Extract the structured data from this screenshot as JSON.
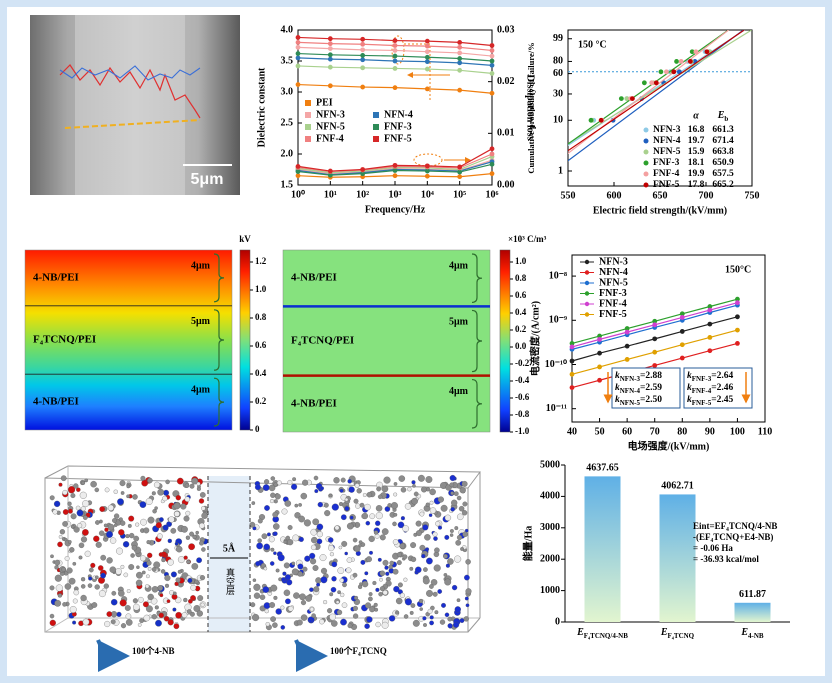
{
  "chart_data": [
    {
      "type": "line",
      "xscale": "log",
      "yscale": "linear",
      "x": [
        1,
        10,
        100,
        1000,
        10000,
        100000,
        1000000
      ],
      "xlim": [
        1,
        1000000
      ],
      "xticks": [
        {
          "value": 1,
          "label": "10⁰"
        },
        {
          "value": 10,
          "label": "10¹"
        },
        {
          "value": 100,
          "label": "10²"
        },
        {
          "value": 1000,
          "label": "10³"
        },
        {
          "value": 10000,
          "label": "10⁴"
        },
        {
          "value": 100000,
          "label": "10⁵"
        },
        {
          "value": 1000000,
          "label": "10⁶"
        }
      ],
      "ylim": [
        1.5,
        4
      ],
      "yticks": [
        1.5,
        {
          "value": 2,
          "label": "2.0"
        },
        2.5,
        {
          "value": 3,
          "label": "3.0"
        },
        3.5,
        {
          "value": 4,
          "label": "4.0"
        }
      ],
      "y2lim": [
        0,
        0.03
      ],
      "y2ticks": [
        {
          "value": 0,
          "label": "0.00"
        },
        0.01,
        0.02,
        0.03
      ],
      "xlabel": "Frequency/Hz",
      "ylabel": "Dielectric constant",
      "y2label": "Dissipation loss",
      "series": [
        {
          "name": "PEI",
          "color": "#f07f10",
          "values": [
            3.12,
            3.1,
            3.08,
            3.07,
            3.05,
            3.03,
            2.98
          ],
          "y2_values": [
            0.0018,
            0.0015,
            0.0016,
            0.0018,
            0.0017,
            0.0016,
            0.0022
          ]
        },
        {
          "name": "NFN-3",
          "color": "#f4a6a6",
          "values": [
            3.72,
            3.7,
            3.68,
            3.67,
            3.65,
            3.63,
            3.58
          ],
          "y2_values": [
            0.003,
            0.0022,
            0.0025,
            0.0032,
            0.003,
            0.0028,
            0.0048
          ]
        },
        {
          "name": "NFN-4",
          "color": "#2e75b6",
          "values": [
            3.55,
            3.53,
            3.52,
            3.5,
            3.49,
            3.47,
            3.43
          ],
          "y2_values": [
            0.0028,
            0.002,
            0.0024,
            0.003,
            0.0029,
            0.0027,
            0.0045
          ]
        },
        {
          "name": "NFN-5",
          "color": "#a9d18e",
          "values": [
            3.42,
            3.4,
            3.39,
            3.38,
            3.37,
            3.35,
            3.3
          ],
          "y2_values": [
            0.0032,
            0.0024,
            0.0027,
            0.0034,
            0.0033,
            0.003,
            0.0055
          ]
        },
        {
          "name": "FNF-3",
          "color": "#2e8b57",
          "values": [
            3.62,
            3.6,
            3.59,
            3.58,
            3.56,
            3.54,
            3.5
          ],
          "y2_values": [
            0.0026,
            0.0019,
            0.0022,
            0.0028,
            0.0027,
            0.0025,
            0.004
          ]
        },
        {
          "name": "FNF-4",
          "color": "#f08080",
          "values": [
            3.8,
            3.78,
            3.77,
            3.75,
            3.74,
            3.72,
            3.67
          ],
          "y2_values": [
            0.0034,
            0.0026,
            0.0029,
            0.0036,
            0.0035,
            0.0033,
            0.006
          ]
        },
        {
          "name": "FNF-5",
          "color": "#d62728",
          "values": [
            3.88,
            3.86,
            3.85,
            3.83,
            3.82,
            3.8,
            3.75
          ],
          "y2_values": [
            0.0036,
            0.0027,
            0.003,
            0.0038,
            0.0037,
            0.0035,
            0.007
          ]
        }
      ]
    },
    {
      "type": "scatter",
      "xscale": "linear",
      "yscale": "weibull",
      "lines": false,
      "note": "150 °C",
      "xlim": [
        550,
        750
      ],
      "xticks": [
        550,
        600,
        650,
        700,
        750
      ],
      "ylim": [
        0.5,
        99.9
      ],
      "yticks": [
        1,
        10,
        30,
        60,
        80,
        99
      ],
      "reference_line": 63.2,
      "xlabel": "Electric field strength/(kV/mm)",
      "ylabel": "Cumulative probability of failure/%",
      "table_headers": [
        "α",
        "Eb"
      ],
      "series": [
        {
          "name": "NFN-3",
          "color": "#8ecae6",
          "alpha": 16.8,
          "Eb": 661.3,
          "x": [
            578,
            614,
            641,
            661,
            680,
            699
          ],
          "values": [
            10,
            25,
            45,
            63,
            80,
            92
          ]
        },
        {
          "name": "NFN-4",
          "color": "#1f5fbf",
          "alpha": 19.7,
          "Eb": 671.4,
          "x": [
            599,
            630,
            654,
            671,
            688,
            704
          ],
          "values": [
            10,
            25,
            45,
            63,
            80,
            92
          ]
        },
        {
          "name": "NFN-5",
          "color": "#a9d18e",
          "alpha": 15.9,
          "Eb": 663.8,
          "x": [
            576,
            614,
            643,
            663,
            684,
            704
          ],
          "values": [
            10,
            25,
            45,
            63,
            80,
            92
          ]
        },
        {
          "name": "FNF-3",
          "color": "#2ca02c",
          "alpha": 18.1,
          "Eb": 650.9,
          "x": [
            575,
            608,
            633,
            651,
            668,
            685
          ],
          "values": [
            10,
            25,
            45,
            63,
            80,
            92
          ]
        },
        {
          "name": "FNF-4",
          "color": "#f4a0a0",
          "alpha": 19.9,
          "Eb": 657.5,
          "x": [
            587,
            618,
            641,
            657,
            673,
            689
          ],
          "values": [
            10,
            25,
            45,
            63,
            80,
            92
          ]
        },
        {
          "name": "FNF-5",
          "color": "#c00000",
          "alpha": 17.8,
          "Eb": 665.2,
          "x": [
            586,
            620,
            646,
            665,
            683,
            701
          ],
          "values": [
            10,
            25,
            45,
            63,
            80,
            92
          ]
        }
      ]
    },
    {
      "type": "line",
      "xscale": "linear",
      "yscale": "log",
      "note": "150°C",
      "x": [
        40,
        50,
        60,
        70,
        80,
        90,
        100
      ],
      "xlim": [
        40,
        110
      ],
      "xticks": [
        40,
        50,
        60,
        70,
        80,
        90,
        100,
        110
      ],
      "ylim": [
        5e-12,
        3e-08
      ],
      "yticks": [
        {
          "value": 1e-11,
          "label": "10⁻¹¹"
        },
        {
          "value": 1e-10,
          "label": "10⁻¹⁰"
        },
        {
          "value": 1e-09,
          "label": "10⁻⁹"
        },
        {
          "value": 1e-08,
          "label": "10⁻⁸"
        }
      ],
      "xlabel": "电场强度/(kV/mm)",
      "ylabel": "电流密度/(A/cm²)",
      "k_groups": [
        [
          "kNFN-3=2.88",
          "kNFN-4=2.59",
          "kNFN-5=2.50"
        ],
        [
          "kFNF-3=2.64",
          "kFNF-4=2.46",
          "kFNF-5=2.45"
        ]
      ],
      "series": [
        {
          "name": "NFN-3",
          "color": "#222222",
          "values": [
            1.2e-10,
            1.8e-10,
            2.6e-10,
            3.8e-10,
            5.6e-10,
            8.2e-10,
            1.2e-09
          ]
        },
        {
          "name": "NFN-4",
          "color": "#e02020",
          "values": [
            3e-11,
            4.4e-11,
            6.5e-11,
            9.5e-11,
            1.4e-10,
            2.05e-10,
            3e-10
          ]
        },
        {
          "name": "NFN-5",
          "color": "#1f6fd0",
          "values": [
            2.2e-10,
            3.2e-10,
            4.7e-10,
            6.9e-10,
            1e-09,
            1.5e-09,
            2.2e-09
          ]
        },
        {
          "name": "FNF-3",
          "color": "#2ca02c",
          "values": [
            3e-10,
            4.4e-10,
            6.5e-10,
            9.5e-10,
            1.4e-09,
            2.05e-09,
            3e-09
          ]
        },
        {
          "name": "FNF-4",
          "color": "#d040d0",
          "values": [
            2.5e-10,
            3.7e-10,
            5.4e-10,
            7.9e-10,
            1.16e-09,
            1.7e-09,
            2.5e-09
          ]
        },
        {
          "name": "FNF-5",
          "color": "#e0a000",
          "values": [
            6e-11,
            8.8e-11,
            1.3e-10,
            1.9e-10,
            2.8e-10,
            4.1e-10,
            6e-10
          ]
        }
      ]
    },
    {
      "type": "bar",
      "yscale": "linear",
      "categories": [
        "EF₄TCNQ/4-NB",
        "EF₄TCNQ",
        "E4-NB"
      ],
      "values": [
        4637.65,
        4062.71,
        611.87
      ],
      "gradient": [
        "#5fb0e6",
        "#e2f5cf"
      ],
      "ylim": [
        0,
        5000
      ],
      "yticks": [
        0,
        1000,
        2000,
        3000,
        4000,
        5000
      ],
      "ylabel": "能量/Ha",
      "annotation": [
        "Eint=EF₄TCNQ/4-NB",
        "-(EF₄TCNQ+E4-NB)",
        "= -0.06 Ha",
        "= -36.93 kcal/mol"
      ]
    }
  ],
  "sem_image": {
    "scale_bar": "5μm"
  },
  "field_maps": [
    {
      "unit": "kV",
      "colorbar_ticks": [
        "1.2",
        "1.0",
        "0.8",
        "0.6",
        "0.4",
        "0.2",
        "0"
      ],
      "layers": [
        {
          "name": "4-NB/PEI",
          "thickness": "4μm"
        },
        {
          "name": "F₄TCNQ/PEI",
          "thickness": "5μm"
        },
        {
          "name": "4-NB/PEI",
          "thickness": "4μm"
        }
      ]
    },
    {
      "unit": "×10³ C/m³",
      "colorbar_ticks": [
        "1.0",
        "0.8",
        "0.6",
        "0.4",
        "0.2",
        "0.0",
        "-0.2",
        "-0.4",
        "-0.6",
        "-0.8",
        "-1.0"
      ],
      "layers": [
        {
          "name": "4-NB/PEI",
          "thickness": "4μm"
        },
        {
          "name": "F₄TCNQ/PEI",
          "thickness": "5μm"
        },
        {
          "name": "4-NB/PEI",
          "thickness": "4μm"
        }
      ]
    }
  ],
  "md_model": {
    "gap": "5Å",
    "vacuum": "真空层",
    "left_label": "100个4-NB",
    "right_label": "100个F₄TCNQ"
  }
}
